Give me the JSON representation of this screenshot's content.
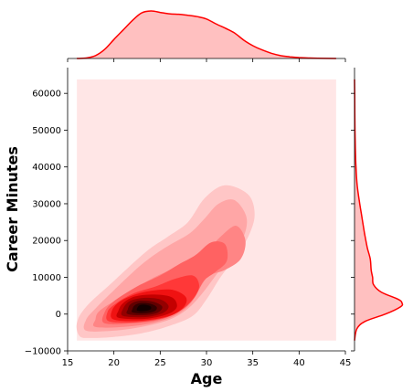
{
  "chart_data": {
    "type": "kde-joint",
    "xlabel": "Age",
    "ylabel": "Career Minutes",
    "xlim": [
      15,
      45
    ],
    "ylim": [
      -10000,
      67000
    ],
    "x_ticks": [
      15,
      20,
      25,
      30,
      35,
      40,
      45
    ],
    "y_ticks": [
      -10000,
      0,
      10000,
      20000,
      30000,
      40000,
      50000,
      60000
    ],
    "x_tick_labels": [
      "15",
      "20",
      "25",
      "30",
      "35",
      "40",
      "45"
    ],
    "y_tick_labels": [
      "−10000",
      "0",
      "10000",
      "20000",
      "30000",
      "40000",
      "50000",
      "60000"
    ],
    "kde_support": {
      "x": [
        16,
        44
      ],
      "y": [
        -7200,
        63800
      ]
    },
    "color": "#ff0000",
    "fill_color": "#ffc0c0",
    "background_level_color": "#ffe6e6",
    "marginal_x_density": [
      {
        "x": 16,
        "d": 0.0
      },
      {
        "x": 17,
        "d": 0.01
      },
      {
        "x": 18,
        "d": 0.06
      },
      {
        "x": 19,
        "d": 0.19
      },
      {
        "x": 20,
        "d": 0.4
      },
      {
        "x": 21,
        "d": 0.6
      },
      {
        "x": 22,
        "d": 0.8
      },
      {
        "x": 23,
        "d": 0.96
      },
      {
        "x": 24,
        "d": 1.0
      },
      {
        "x": 25,
        "d": 0.97
      },
      {
        "x": 26,
        "d": 0.94
      },
      {
        "x": 27,
        "d": 0.93
      },
      {
        "x": 28,
        "d": 0.91
      },
      {
        "x": 29,
        "d": 0.88
      },
      {
        "x": 30,
        "d": 0.83
      },
      {
        "x": 31,
        "d": 0.73
      },
      {
        "x": 32,
        "d": 0.64
      },
      {
        "x": 33,
        "d": 0.54
      },
      {
        "x": 34,
        "d": 0.39
      },
      {
        "x": 35,
        "d": 0.27
      },
      {
        "x": 36,
        "d": 0.18
      },
      {
        "x": 37,
        "d": 0.11
      },
      {
        "x": 38,
        "d": 0.06
      },
      {
        "x": 39,
        "d": 0.035
      },
      {
        "x": 40,
        "d": 0.02
      },
      {
        "x": 41,
        "d": 0.01
      },
      {
        "x": 42,
        "d": 0.005
      },
      {
        "x": 44,
        "d": 0.0
      }
    ],
    "marginal_y_density": [
      {
        "y": -7200,
        "d": 0.0
      },
      {
        "y": -4000,
        "d": 0.05
      },
      {
        "y": -2000,
        "d": 0.22
      },
      {
        "y": 0,
        "d": 0.65
      },
      {
        "y": 2000,
        "d": 0.97
      },
      {
        "y": 3000,
        "d": 1.0
      },
      {
        "y": 4000,
        "d": 0.92
      },
      {
        "y": 6000,
        "d": 0.56
      },
      {
        "y": 8000,
        "d": 0.4
      },
      {
        "y": 10000,
        "d": 0.38
      },
      {
        "y": 12000,
        "d": 0.35
      },
      {
        "y": 15000,
        "d": 0.33
      },
      {
        "y": 18000,
        "d": 0.27
      },
      {
        "y": 22000,
        "d": 0.21
      },
      {
        "y": 26000,
        "d": 0.16
      },
      {
        "y": 30000,
        "d": 0.11
      },
      {
        "y": 35000,
        "d": 0.055
      },
      {
        "y": 40000,
        "d": 0.03
      },
      {
        "y": 45000,
        "d": 0.018
      },
      {
        "y": 50000,
        "d": 0.01
      },
      {
        "y": 55000,
        "d": 0.006
      },
      {
        "y": 60000,
        "d": 0.003
      },
      {
        "y": 63800,
        "d": 0.0
      }
    ],
    "joint_levels": [
      {
        "color": "#ffc6c6",
        "points": [
          [
            16.3,
            -6000
          ],
          [
            17.5,
            -6500
          ],
          [
            20,
            -6200
          ],
          [
            23,
            -5200
          ],
          [
            26,
            -3200
          ],
          [
            28.5,
            -500
          ],
          [
            30,
            4000
          ],
          [
            31.5,
            10000
          ],
          [
            33,
            15000
          ],
          [
            34.5,
            21000
          ],
          [
            35.2,
            27000
          ],
          [
            34.5,
            32500
          ],
          [
            32,
            35000
          ],
          [
            29.8,
            31500
          ],
          [
            28,
            25000
          ],
          [
            25.8,
            21000
          ],
          [
            23.5,
            17000
          ],
          [
            20,
            9000
          ],
          [
            17,
            2000
          ],
          [
            16,
            -2500
          ]
        ]
      },
      {
        "color": "#ffa6a6",
        "points": [
          [
            17,
            -4500
          ],
          [
            20,
            -4500
          ],
          [
            23,
            -3500
          ],
          [
            26,
            -1500
          ],
          [
            28,
            1500
          ],
          [
            29.5,
            5500
          ],
          [
            31,
            10500
          ],
          [
            32.5,
            15500
          ],
          [
            34,
            21000
          ],
          [
            34.3,
            26500
          ],
          [
            33,
            31000
          ],
          [
            31.3,
            30000
          ],
          [
            29.8,
            26000
          ],
          [
            28.2,
            22000
          ],
          [
            25.5,
            18000
          ],
          [
            23,
            13500
          ],
          [
            20,
            6500
          ],
          [
            18,
            1500
          ],
          [
            17,
            -1500
          ]
        ]
      },
      {
        "color": "#ff8585",
        "points": [
          [
            18,
            -3500
          ],
          [
            21,
            -3500
          ],
          [
            24,
            -2500
          ],
          [
            26.5,
            -500
          ],
          [
            28.3,
            3000
          ],
          [
            29.5,
            8000
          ],
          [
            30.3,
            10500
          ],
          [
            32,
            12000
          ],
          [
            33.7,
            15000
          ],
          [
            34.2,
            20000
          ],
          [
            33.2,
            24000
          ],
          [
            31.5,
            21000
          ],
          [
            30,
            17000
          ],
          [
            28.5,
            15000
          ],
          [
            26.5,
            12500
          ],
          [
            24,
            9500
          ],
          [
            21,
            5000
          ],
          [
            18.5,
            1000
          ],
          [
            18,
            -1500
          ]
        ]
      },
      {
        "color": "#ff6262",
        "points": [
          [
            19,
            -2500
          ],
          [
            22,
            -2500
          ],
          [
            25,
            -1500
          ],
          [
            27.2,
            1000
          ],
          [
            28.7,
            4500
          ],
          [
            29.7,
            9000
          ],
          [
            31,
            11500
          ],
          [
            32.2,
            14500
          ],
          [
            32,
            19000
          ],
          [
            30.5,
            19500
          ],
          [
            28.8,
            16000
          ],
          [
            27,
            13500
          ],
          [
            25,
            10500
          ],
          [
            22.5,
            7500
          ],
          [
            20,
            3500
          ],
          [
            19,
            500
          ]
        ]
      },
      {
        "color": "#ff3838",
        "points": [
          [
            19.5,
            -2000
          ],
          [
            22.5,
            -2200
          ],
          [
            25.5,
            -1000
          ],
          [
            27.5,
            1500
          ],
          [
            28.8,
            5000
          ],
          [
            29.2,
            8000
          ],
          [
            28.5,
            10500
          ],
          [
            26.5,
            9500
          ],
          [
            24.5,
            7500
          ],
          [
            22,
            5500
          ],
          [
            20,
            2500
          ],
          [
            19.3,
            500
          ]
        ]
      },
      {
        "color": "#f01212",
        "points": [
          [
            20,
            -1500
          ],
          [
            23,
            -1800
          ],
          [
            26,
            -500
          ],
          [
            27.5,
            1800
          ],
          [
            27.8,
            4500
          ],
          [
            26.5,
            6500
          ],
          [
            24.5,
            6500
          ],
          [
            22.5,
            5500
          ],
          [
            20.7,
            3500
          ],
          [
            19.8,
            1000
          ]
        ]
      },
      {
        "color": "#c40000",
        "points": [
          [
            20.5,
            -1000
          ],
          [
            23.3,
            -1300
          ],
          [
            25.8,
            0
          ],
          [
            26.8,
            2000
          ],
          [
            26.3,
            4500
          ],
          [
            24.5,
            5300
          ],
          [
            22.3,
            4800
          ],
          [
            21,
            3000
          ],
          [
            20.5,
            1000
          ]
        ]
      },
      {
        "color": "#940000",
        "points": [
          [
            21,
            -500
          ],
          [
            23.4,
            -800
          ],
          [
            25.3,
            300
          ],
          [
            25.9,
            2200
          ],
          [
            25,
            4000
          ],
          [
            23.2,
            4400
          ],
          [
            21.7,
            3500
          ],
          [
            21,
            1500
          ]
        ]
      },
      {
        "color": "#620000",
        "points": [
          [
            21.5,
            0
          ],
          [
            23.3,
            -300
          ],
          [
            24.8,
            500
          ],
          [
            25.2,
            2100
          ],
          [
            24.2,
            3400
          ],
          [
            22.7,
            3600
          ],
          [
            21.8,
            2700
          ],
          [
            21.5,
            1300
          ]
        ]
      },
      {
        "color": "#330000",
        "points": [
          [
            22,
            500
          ],
          [
            23.2,
            200
          ],
          [
            24.4,
            800
          ],
          [
            24.6,
            2000
          ],
          [
            23.8,
            2900
          ],
          [
            22.8,
            3000
          ],
          [
            22.2,
            2300
          ],
          [
            22,
            1300
          ]
        ]
      },
      {
        "color": "#120000",
        "points": [
          [
            22.5,
            1000
          ],
          [
            23.2,
            800
          ],
          [
            23.9,
            1200
          ],
          [
            24,
            2000
          ],
          [
            23.5,
            2500
          ],
          [
            22.9,
            2500
          ],
          [
            22.6,
            2000
          ]
        ]
      }
    ]
  }
}
